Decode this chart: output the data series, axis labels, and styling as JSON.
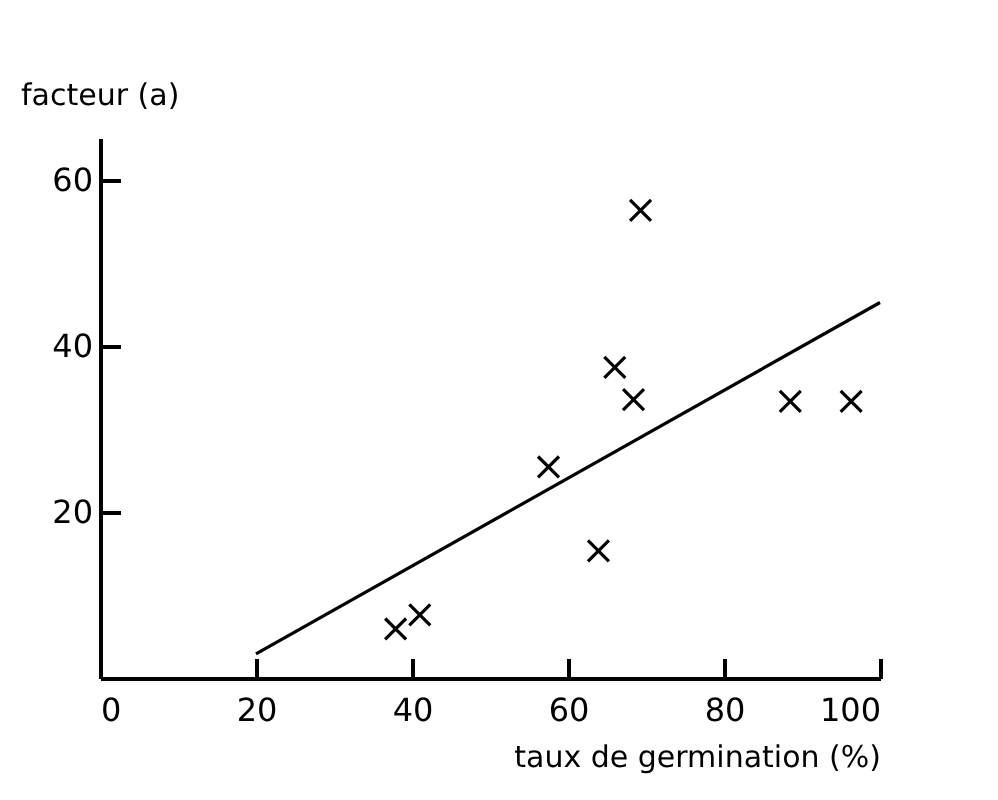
{
  "chart_data": {
    "type": "scatter",
    "xlabel": "taux de germination (%)",
    "ylabel": "facteur (a)",
    "xlim": [
      0,
      100
    ],
    "ylim": [
      0,
      65
    ],
    "xticks": [
      0,
      20,
      40,
      60,
      80,
      100
    ],
    "yticks": [
      20,
      40,
      60
    ],
    "grid": false,
    "x": [
      37.9,
      41.0,
      57.5,
      63.9,
      66.0,
      68.4,
      69.3,
      88.5,
      96.3
    ],
    "series": [
      {
        "color": "#000000",
        "marker": "cross",
        "values": [
          5.9,
          7.6,
          25.4,
          15.3,
          37.4,
          33.5,
          56.3,
          33.3,
          33.3
        ]
      },
      {
        "type": "line",
        "color": "#000000",
        "marker": "none",
        "x": [
          20,
          100
        ],
        "values": [
          2.9,
          45.2
        ]
      }
    ]
  }
}
